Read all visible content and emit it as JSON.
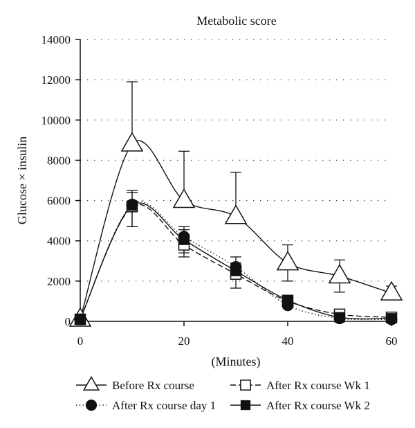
{
  "chart_data": {
    "type": "line",
    "title": "Metabolic score",
    "xlabel": "(Minutes)",
    "ylabel": "Glucose × insulin",
    "xlim": [
      0,
      60
    ],
    "ylim": [
      0,
      14000
    ],
    "xticks": [
      0,
      20,
      40,
      60
    ],
    "yticks": [
      0,
      2000,
      4000,
      6000,
      8000,
      10000,
      12000,
      14000
    ],
    "grid": "horizontal dotted",
    "legend_position": "bottom",
    "x": [
      0,
      10,
      20,
      30,
      40,
      50,
      60
    ],
    "series": [
      {
        "name": "Before Rx course",
        "marker": "open-triangle",
        "line_style": "solid",
        "values": [
          100,
          8800,
          6000,
          5200,
          2900,
          2250,
          1400
        ],
        "error_upper": [
          null,
          11900,
          8450,
          7400,
          3800,
          3050,
          1750
        ],
        "error_lower": [
          null,
          null,
          null,
          null,
          2000,
          1450,
          null
        ]
      },
      {
        "name": "After Rx course day 1",
        "marker": "filled-circle",
        "line_style": "dotted",
        "values": [
          100,
          5800,
          4200,
          2700,
          800,
          150,
          100
        ],
        "error_upper": [
          null,
          6400,
          4700,
          3200,
          null,
          null,
          null
        ],
        "error_lower": [
          null,
          4700,
          3400,
          null,
          null,
          null,
          null
        ]
      },
      {
        "name": "After Rx course Wk 1",
        "marker": "open-square",
        "line_style": "dashed",
        "values": [
          100,
          5700,
          3800,
          2350,
          1000,
          350,
          200
        ],
        "error_upper": [
          null,
          null,
          null,
          null,
          null,
          null,
          null
        ],
        "error_lower": [
          null,
          4700,
          3200,
          1650,
          null,
          null,
          null
        ]
      },
      {
        "name": "After Rx course Wk 2",
        "marker": "filled-square",
        "line_style": "solid",
        "values": [
          100,
          5750,
          4050,
          2500,
          1050,
          200,
          150
        ],
        "error_upper": [
          null,
          6500,
          4550,
          2900,
          1300,
          null,
          null
        ],
        "error_lower": [
          null,
          null,
          null,
          null,
          null,
          null,
          null
        ]
      }
    ]
  }
}
